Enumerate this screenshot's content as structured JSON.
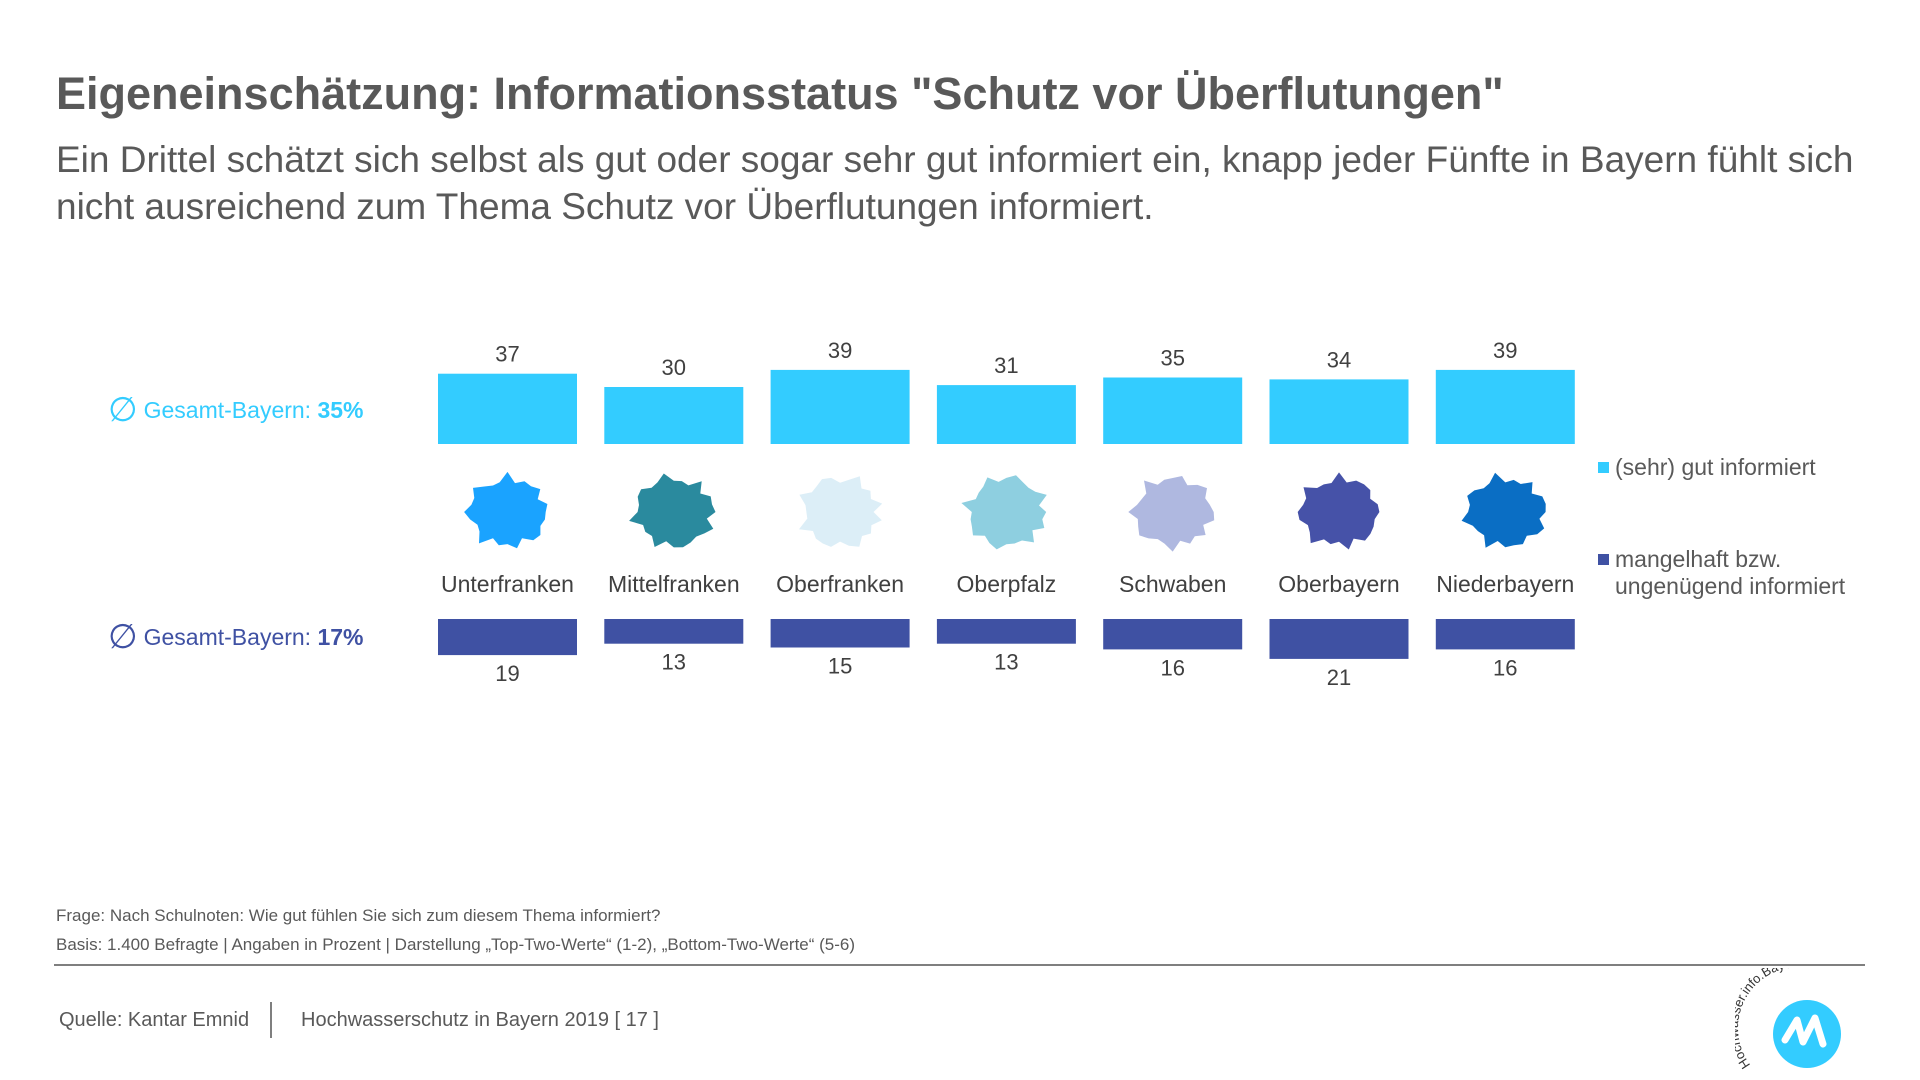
{
  "title": "Eigeneinschätzung: Informationsstatus \"Schutz vor Überflutungen\"",
  "subtitle": "Ein Drittel schätzt sich selbst als gut oder sogar sehr gut informiert ein, knapp jeder Fünfte in Bayern fühlt sich nicht ausreichend zum Thema Schutz vor Überflutungen informiert.",
  "averages": {
    "symbol": "∅",
    "good_label": "Gesamt-Bayern:",
    "good_value": "35%",
    "poor_label": "Gesamt-Bayern:",
    "poor_value": "17%"
  },
  "legend": {
    "good": "(sehr) gut informiert",
    "poor": "mangelhaft bzw. ungenügend informiert"
  },
  "colors": {
    "good": "#33CCFF",
    "poor": "#3F51A3",
    "regions": [
      "#1AA3FF",
      "#2A8A9E",
      "#DCEEF7",
      "#8ECFE0",
      "#AFB8E0",
      "#4652A8",
      "#0A6EC4"
    ]
  },
  "chart_data": {
    "type": "bar",
    "categories": [
      "Unterfranken",
      "Mittelfranken",
      "Oberfranken",
      "Oberpfalz",
      "Schwaben",
      "Oberbayern",
      "Niederbayern"
    ],
    "series": [
      {
        "name": "(sehr) gut informiert",
        "values": [
          37,
          30,
          39,
          31,
          35,
          34,
          39
        ]
      },
      {
        "name": "mangelhaft bzw. ungenügend informiert",
        "values": [
          19,
          13,
          15,
          13,
          16,
          21,
          16
        ]
      }
    ],
    "unit": "%",
    "grid": false,
    "legend_position": "right"
  },
  "footer": {
    "question": "Frage: Nach Schulnoten: Wie gut fühlen Sie sich zum diesem Thema informiert?",
    "basis": "Basis: 1.400 Befragte  | Angaben in Prozent  |  Darstellung „Top-Two-Werte“ (1-2), „Bottom-Two-Werte“ (5-6)",
    "source": "Quelle: Kantar Emnid",
    "publication": "Hochwasserschutz in Bayern 2019 [ 17 ]"
  },
  "logo": {
    "text": "Hochwasser.info.Bayern",
    "name": "hochwasser-info-bayern-logo"
  }
}
